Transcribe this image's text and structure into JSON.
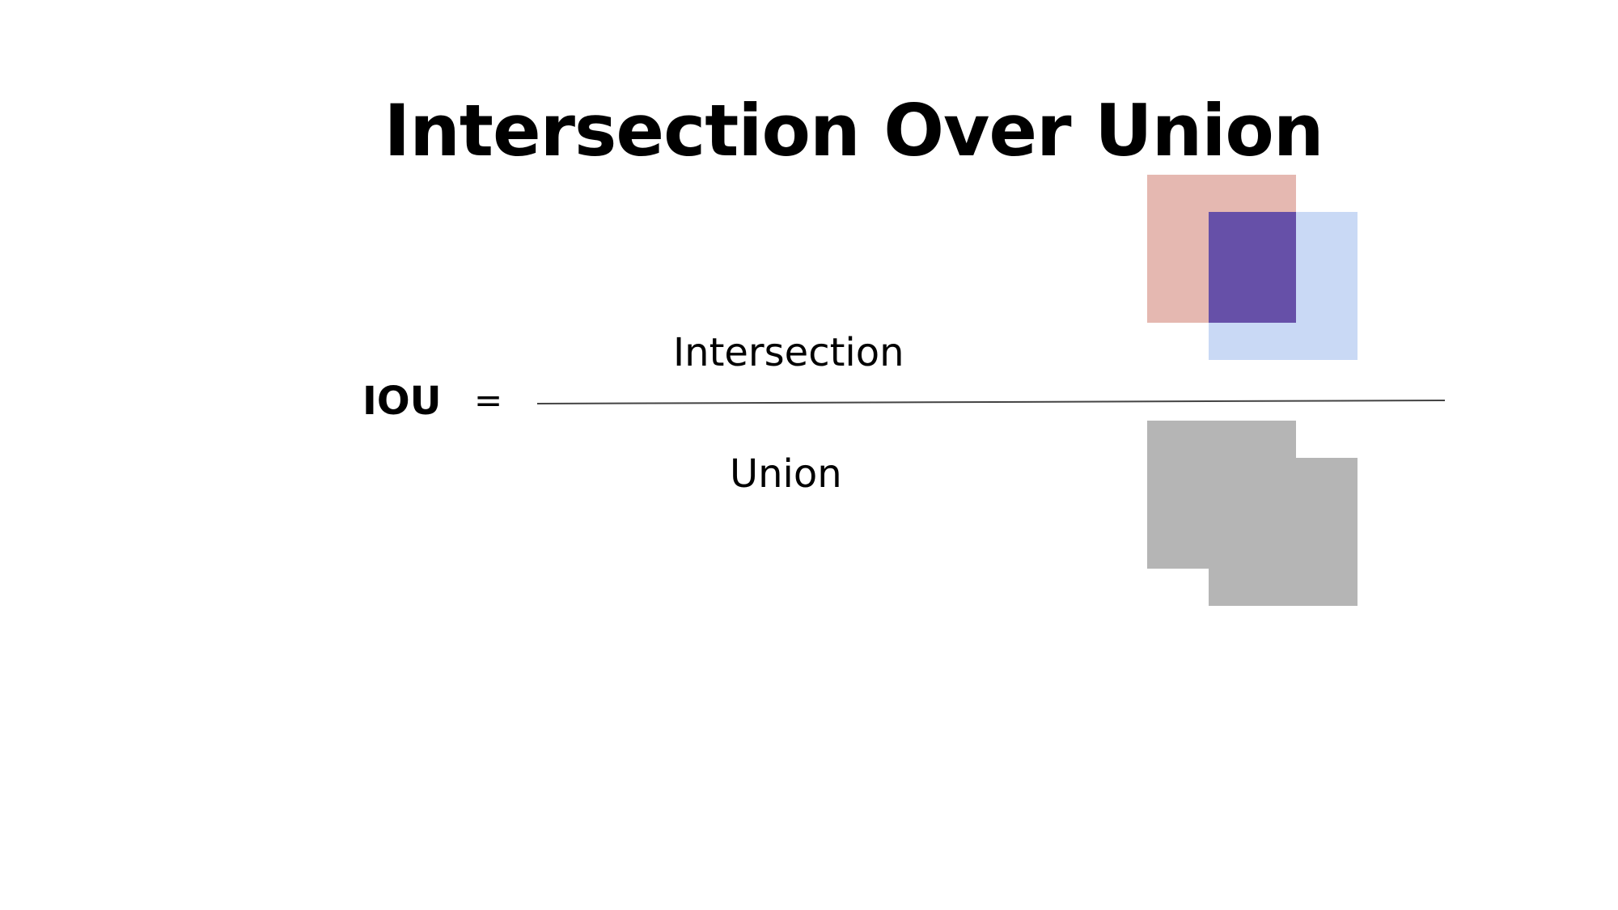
{
  "title": "Intersection Over Union",
  "formula": {
    "lhs": "IOU",
    "operator": "=",
    "numerator": "Intersection",
    "denominator": "Union"
  },
  "colors": {
    "box_a": "#e5b8b1",
    "box_b": "#c9d9f5",
    "intersection": "#6650a8",
    "union": "#b5b5b5",
    "fraction_line": "#444444"
  }
}
